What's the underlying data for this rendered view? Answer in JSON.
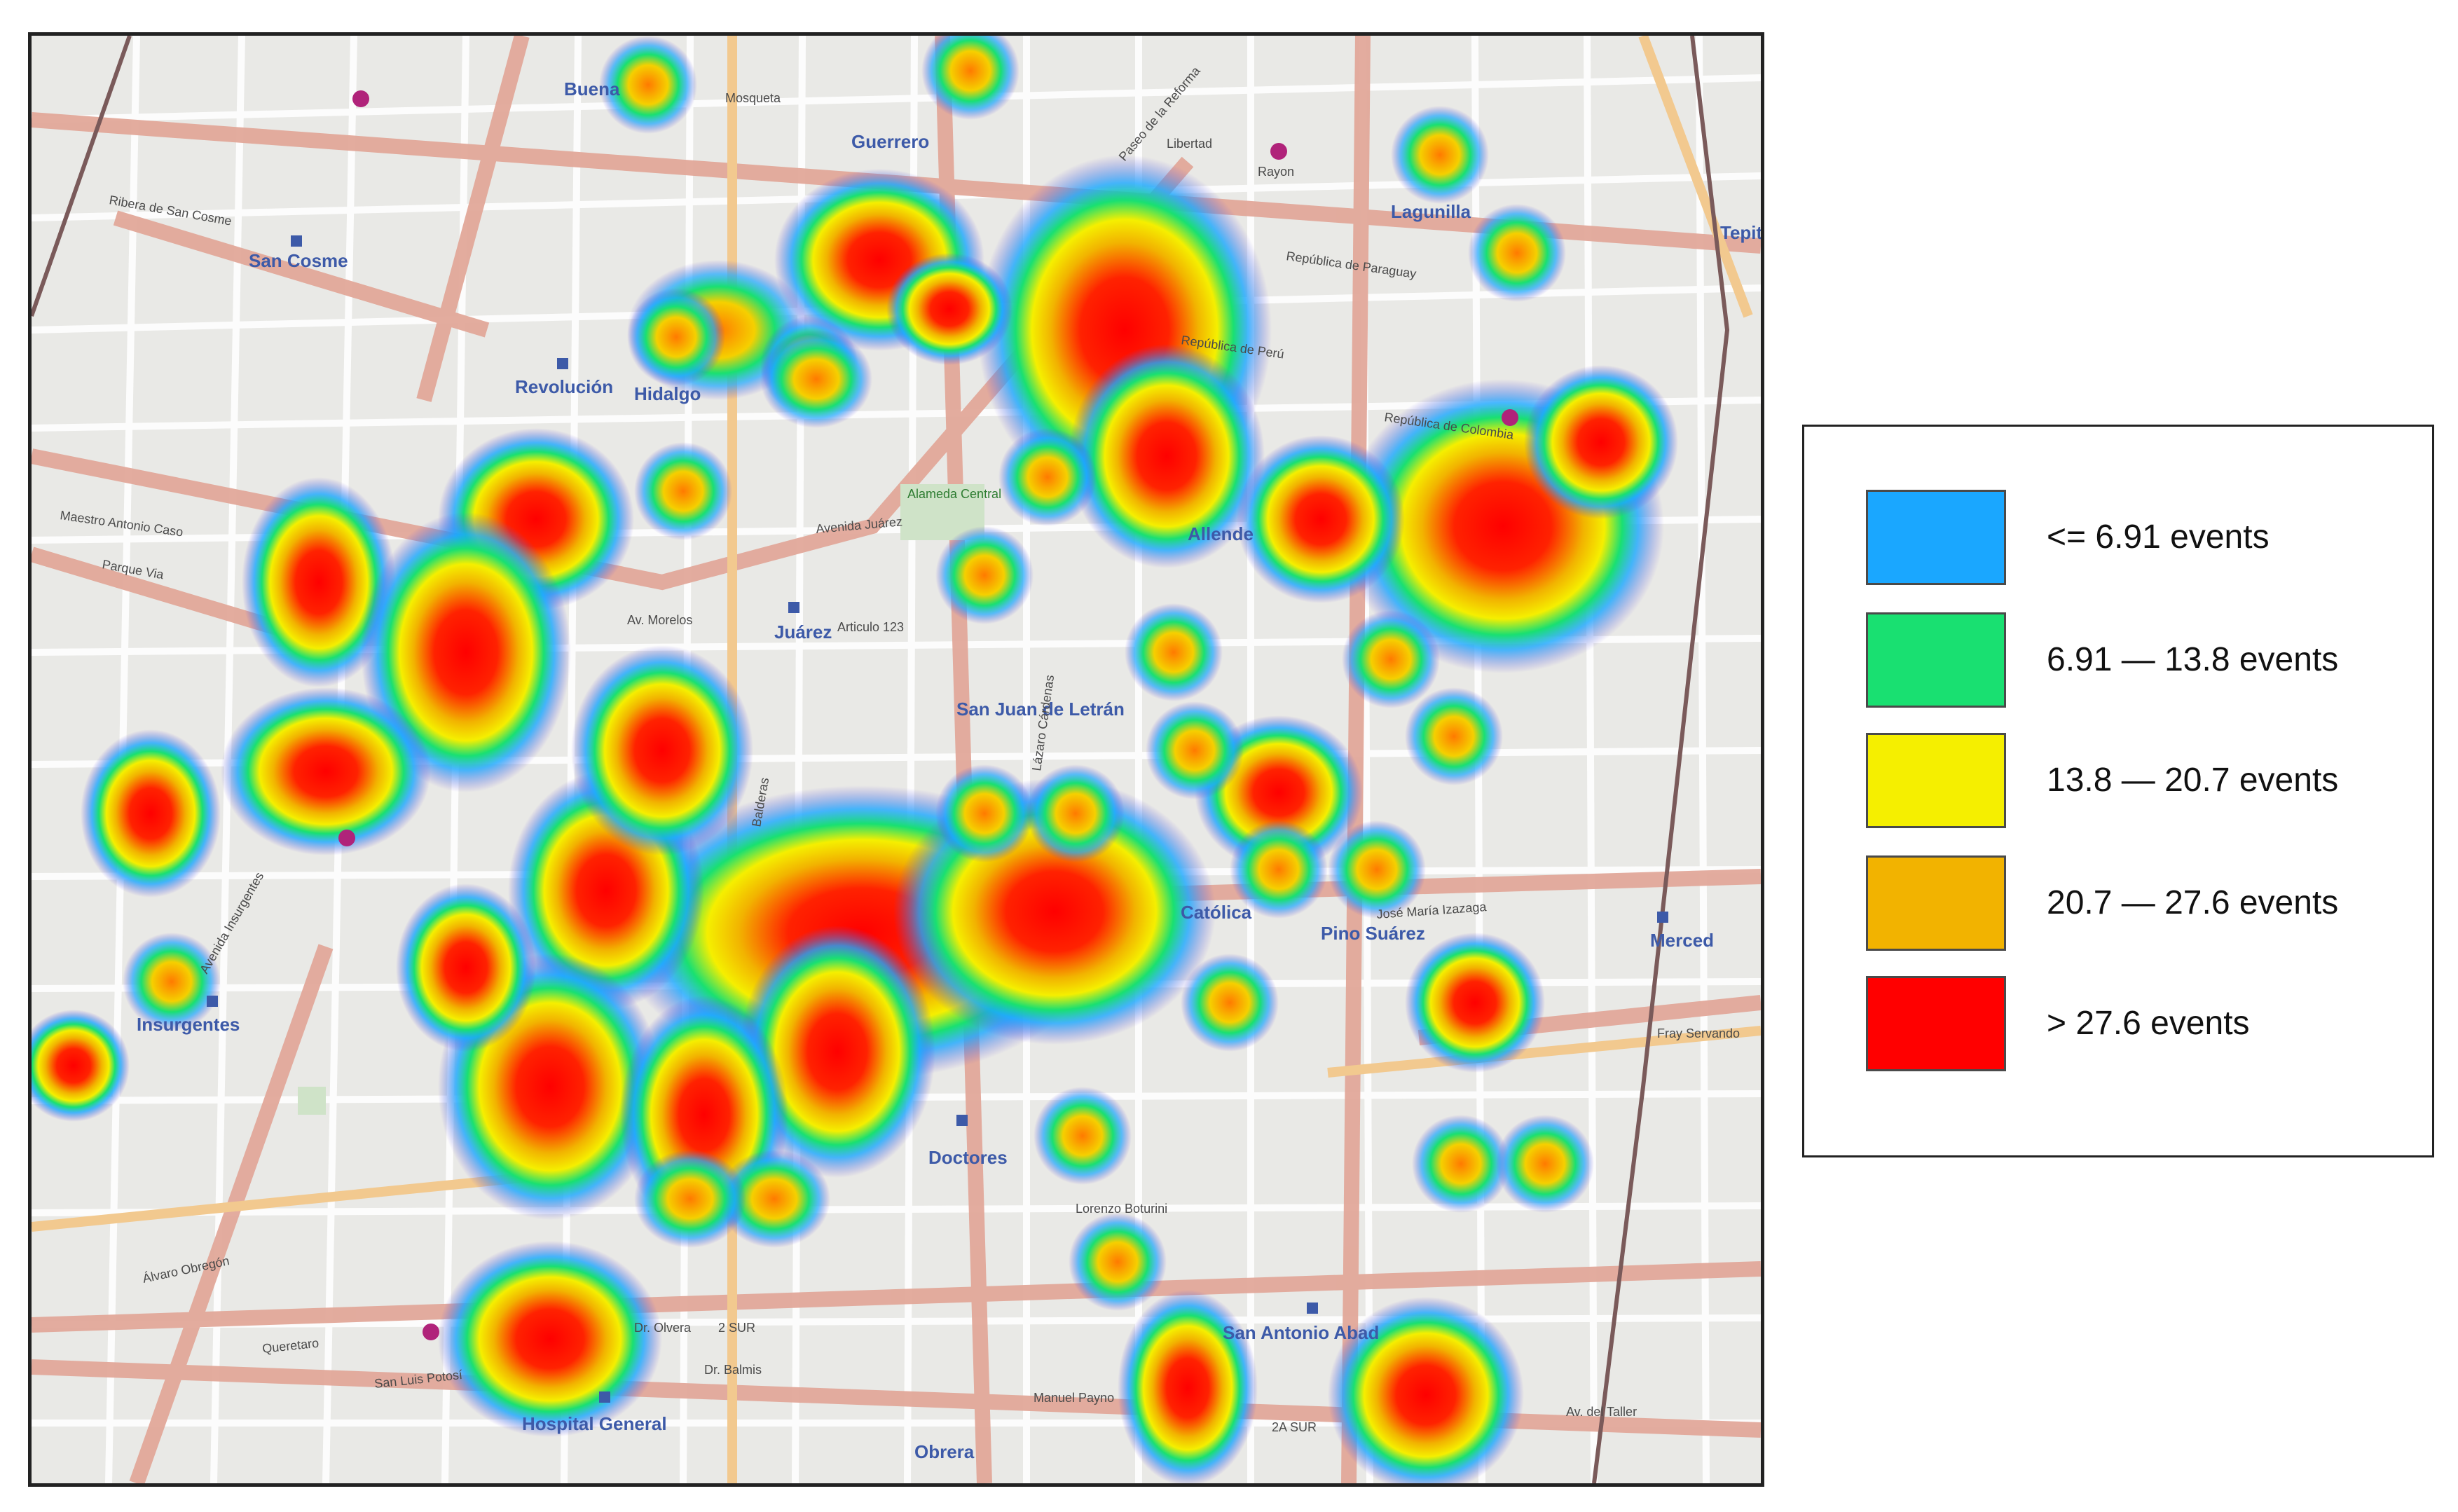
{
  "legend": {
    "items": [
      {
        "label": "<= 6.91 events",
        "color": "#1aa7ff"
      },
      {
        "label": "6.91 — 13.8 events",
        "color": "#19e071"
      },
      {
        "label": "13.8 — 20.7 events",
        "color": "#f5ef00"
      },
      {
        "label": "20.7 — 27.6 events",
        "color": "#f2b300"
      },
      {
        "label": "> 27.6 events",
        "color": "#ff0000"
      }
    ]
  },
  "map": {
    "neighborhoods": [
      "Guerrero",
      "San Cosme",
      "Revolución",
      "Hidalgo",
      "Juárez",
      "San Juan de Letrán",
      "Allende",
      "Lagunilla",
      "Insurgentes",
      "Doctores",
      "Católica",
      "Pino Suárez",
      "Merced",
      "Hospital General",
      "Obrera",
      "San Antonio Abad",
      "Alameda Central",
      "Rayon",
      "Buena",
      "Tepito"
    ],
    "streets": [
      "Mosqueta",
      "Ribera de San Cosme",
      "Maestro Antonio Caso",
      "Parque Via",
      "Avenida Juárez",
      "Av. Morelos",
      "Articulo 123",
      "Avenida Insurgentes",
      "Álvaro Obregón",
      "Queretaro",
      "San Luis Potosí",
      "Dr. Olvera",
      "Dr. Balmis",
      "Manuel Payno",
      "Av. del Taller",
      "Fray Servando",
      "José María Izazaga",
      "Paseo de la Reforma",
      "Lázaro Cárdenas",
      "Balderas",
      "Lorenzo Boturini",
      "República de Colombia",
      "República de Paraguay",
      "República de Perú",
      "Libertad",
      "2A SUR",
      "2 SUR"
    ]
  }
}
